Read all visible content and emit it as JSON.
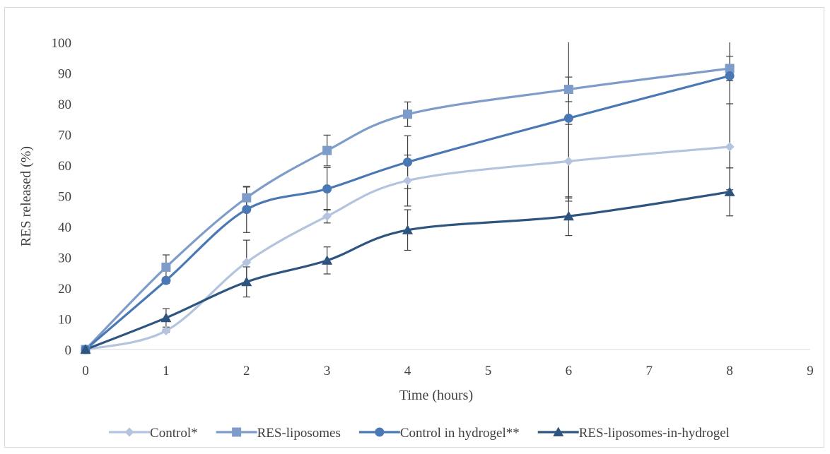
{
  "chart_data": {
    "type": "line",
    "title": "",
    "xlabel": "Time (hours)",
    "ylabel": "RES released (%)",
    "xlim": [
      0,
      9
    ],
    "ylim": [
      0,
      100
    ],
    "x_ticks": [
      "0",
      "1",
      "2",
      "3",
      "4",
      "5",
      "6",
      "7",
      "8",
      "9"
    ],
    "y_ticks": [
      "0",
      "10",
      "20",
      "30",
      "40",
      "50",
      "60",
      "70",
      "80",
      "90",
      "100"
    ],
    "grid": false,
    "legend_position": "bottom",
    "smooth_lines": true,
    "x": [
      0,
      1,
      2,
      3,
      4,
      6,
      8
    ],
    "series": [
      {
        "name": "Control*",
        "color": "#b4c3de",
        "marker": "diamond",
        "values": [
          0,
          6.1,
          28.4,
          43.4,
          55,
          61.3,
          66
        ],
        "errors": [
          0,
          0.5,
          7.2,
          2.2,
          8.3,
          12,
          14
        ]
      },
      {
        "name": "RES-liposomes",
        "color": "#7e9cc9",
        "marker": "square",
        "values": [
          0,
          26.8,
          49.4,
          64.8,
          76.6,
          84.7,
          91.5
        ],
        "errors": [
          0,
          4,
          3.5,
          5,
          4,
          4,
          4
        ]
      },
      {
        "name": "Control in hydrogel**",
        "color": "#4a78b4",
        "marker": "circle",
        "values": [
          0,
          22.5,
          45.6,
          52.3,
          61,
          75.3,
          89.1
        ],
        "errors": [
          0,
          1,
          7.5,
          6.9,
          8.6,
          27,
          30
        ]
      },
      {
        "name": "RES-liposomes-in-hydrogel",
        "color": "#2e5480",
        "marker": "triangle",
        "values": [
          0,
          10.3,
          22,
          29,
          38.9,
          43.4,
          51.3
        ],
        "errors": [
          0,
          3,
          4.9,
          4.4,
          6.6,
          6.3,
          7.8
        ]
      }
    ]
  }
}
